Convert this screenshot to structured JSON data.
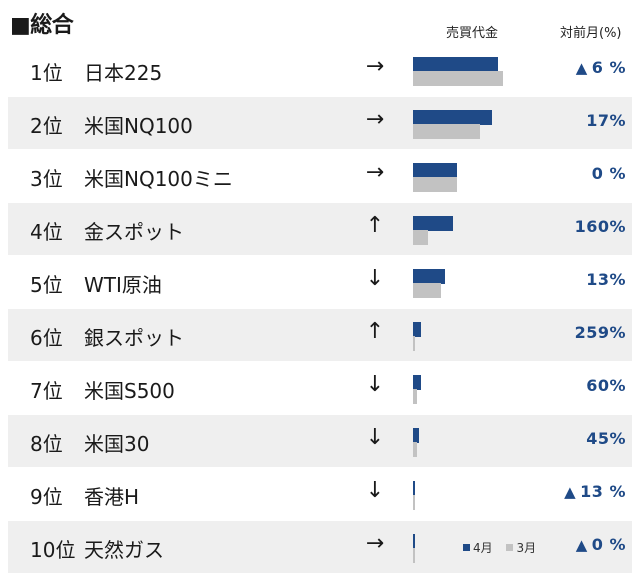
{
  "title": "■総合",
  "headers": {
    "volume": "売買代金",
    "mom": "対前月(%)"
  },
  "legend": {
    "april": "4月",
    "march": "3月"
  },
  "colors": {
    "april": "#1f4a87",
    "march": "#c2c2c2"
  },
  "rows": [
    {
      "rank": "1位",
      "name": "日本225",
      "arrow": "→",
      "trend_icon": "arrow-right-icon",
      "apr": 0.77,
      "mar": 0.82,
      "triangle": "▲",
      "pct": "6 %"
    },
    {
      "rank": "2位",
      "name": "米国NQ100",
      "arrow": "→",
      "trend_icon": "arrow-right-icon",
      "apr": 0.72,
      "mar": 0.61,
      "triangle": "",
      "pct": "17%"
    },
    {
      "rank": "3位",
      "name": "米国NQ100ミニ",
      "arrow": "→",
      "trend_icon": "arrow-right-icon",
      "apr": 0.4,
      "mar": 0.4,
      "triangle": "",
      "pct": "0 %"
    },
    {
      "rank": "4位",
      "name": "金スポット",
      "arrow": "↑",
      "trend_icon": "arrow-up-icon",
      "apr": 0.36,
      "mar": 0.14,
      "triangle": "",
      "pct": "160%"
    },
    {
      "rank": "5位",
      "name": "WTI原油",
      "arrow": "↓",
      "trend_icon": "arrow-down-icon",
      "apr": 0.29,
      "mar": 0.25,
      "triangle": "",
      "pct": "13%"
    },
    {
      "rank": "6位",
      "name": "銀スポット",
      "arrow": "↑",
      "trend_icon": "arrow-up-icon",
      "apr": 0.07,
      "mar": 0.02,
      "triangle": "",
      "pct": "259%"
    },
    {
      "rank": "7位",
      "name": "米国S500",
      "arrow": "↓",
      "trend_icon": "arrow-down-icon",
      "apr": 0.07,
      "mar": 0.04,
      "triangle": "",
      "pct": "60%"
    },
    {
      "rank": "8位",
      "name": "米国30",
      "arrow": "↓",
      "trend_icon": "arrow-down-icon",
      "apr": 0.05,
      "mar": 0.04,
      "triangle": "",
      "pct": "45%"
    },
    {
      "rank": "9位",
      "name": "香港H",
      "arrow": "↓",
      "trend_icon": "arrow-down-icon",
      "apr": 0.02,
      "mar": 0.02,
      "triangle": "▲",
      "pct": "13 %"
    },
    {
      "rank": "10位",
      "name": "天然ガス",
      "arrow": "→",
      "trend_icon": "arrow-right-icon",
      "apr": 0.02,
      "mar": 0.02,
      "triangle": "▲",
      "pct": "0 %"
    }
  ]
}
